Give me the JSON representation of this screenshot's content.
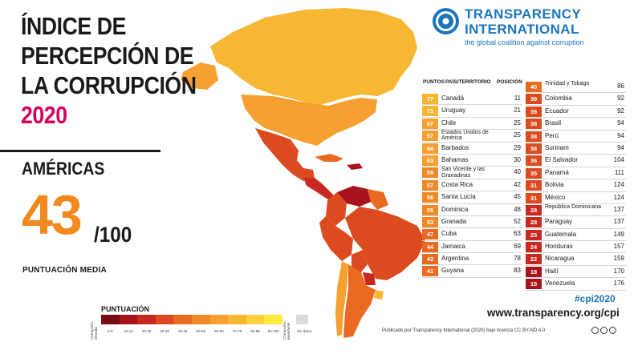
{
  "header": {
    "title_lines": [
      "ÍNDICE DE",
      "PERCEPCIÓN DE",
      "LA CORRUPCIÓN"
    ],
    "year": "2020",
    "region": "AMÉRICAS",
    "score": "43",
    "score_den": "/100",
    "avg_label": "PUNTUACIÓN MEDIA"
  },
  "logo": {
    "line1": "TRANSPARENCY",
    "line2": "INTERNATIONAL",
    "tagline": "the global coalition against corruption"
  },
  "table": {
    "headers": {
      "score": "PUNTOS",
      "country": "PAÍS/TERRITORIO",
      "rank": "POSICIÓN"
    },
    "left": [
      {
        "score": "77",
        "country": "Canadá",
        "rank": "11",
        "color": "#f7b733"
      },
      {
        "score": "71",
        "country": "Uruguay",
        "rank": "21",
        "color": "#f7b733"
      },
      {
        "score": "67",
        "country": "Chile",
        "rank": "25",
        "color": "#f5a030"
      },
      {
        "score": "67",
        "country": "Estados Unidos de América",
        "rank": "25",
        "color": "#f5a030"
      },
      {
        "score": "64",
        "country": "Barbados",
        "rank": "29",
        "color": "#f5a030"
      },
      {
        "score": "63",
        "country": "Bahamas",
        "rank": "30",
        "color": "#f5a030"
      },
      {
        "score": "59",
        "country": "San Vicente y las Granadinas",
        "rank": "40",
        "color": "#f08a27"
      },
      {
        "score": "57",
        "country": "Costa Rica",
        "rank": "42",
        "color": "#f08a27"
      },
      {
        "score": "56",
        "country": "Santa Lucía",
        "rank": "45",
        "color": "#f08a27"
      },
      {
        "score": "55",
        "country": "Dominica",
        "rank": "48",
        "color": "#f08a27"
      },
      {
        "score": "53",
        "country": "Granada",
        "rank": "52",
        "color": "#f08a27"
      },
      {
        "score": "47",
        "country": "Cuba",
        "rank": "63",
        "color": "#ea6a22"
      },
      {
        "score": "44",
        "country": "Jamaica",
        "rank": "69",
        "color": "#ea6a22"
      },
      {
        "score": "42",
        "country": "Argentina",
        "rank": "78",
        "color": "#ea6a22"
      },
      {
        "score": "41",
        "country": "Guyana",
        "rank": "83",
        "color": "#ea6a22"
      }
    ],
    "right": [
      {
        "score": "40",
        "country": "Trinidad y Tobago",
        "rank": "86",
        "color": "#ea6a22"
      },
      {
        "score": "39",
        "country": "Colombia",
        "rank": "92",
        "color": "#dc4b20"
      },
      {
        "score": "39",
        "country": "Ecuador",
        "rank": "92",
        "color": "#dc4b20"
      },
      {
        "score": "38",
        "country": "Brasil",
        "rank": "94",
        "color": "#dc4b20"
      },
      {
        "score": "38",
        "country": "Perú",
        "rank": "94",
        "color": "#dc4b20"
      },
      {
        "score": "38",
        "country": "Surinam",
        "rank": "94",
        "color": "#dc4b20"
      },
      {
        "score": "36",
        "country": "El Salvador",
        "rank": "104",
        "color": "#dc4b20"
      },
      {
        "score": "35",
        "country": "Panamá",
        "rank": "111",
        "color": "#dc4b20"
      },
      {
        "score": "31",
        "country": "Bolivia",
        "rank": "124",
        "color": "#dc4b20"
      },
      {
        "score": "31",
        "country": "México",
        "rank": "124",
        "color": "#dc4b20"
      },
      {
        "score": "28",
        "country": "República Dominicana",
        "rank": "137",
        "color": "#c8281f"
      },
      {
        "score": "28",
        "country": "Paraguay",
        "rank": "137",
        "color": "#c8281f"
      },
      {
        "score": "25",
        "country": "Guatemala",
        "rank": "149",
        "color": "#c8281f"
      },
      {
        "score": "24",
        "country": "Honduras",
        "rank": "157",
        "color": "#c8281f"
      },
      {
        "score": "22",
        "country": "Nicaragua",
        "rank": "159",
        "color": "#c8281f"
      },
      {
        "score": "18",
        "country": "Haití",
        "rank": "170",
        "color": "#a8141c"
      },
      {
        "score": "15",
        "country": "Venezuela",
        "rank": "176",
        "color": "#a8141c"
      }
    ]
  },
  "footer": {
    "hashtag": "#cpi2020",
    "url": "www.transparency.org/cpi",
    "credit": "Publicado por Transparency International (2020) bajo licencia CC BY-ND 4.0"
  },
  "legend": {
    "title": "PUNTUACIÓN",
    "left_label": "Corrupción elevada",
    "right_label": "Corrupción inexistente",
    "bins": [
      {
        "label": "0-9",
        "color": "#7a0a14"
      },
      {
        "label": "10-19",
        "color": "#a8141c"
      },
      {
        "label": "20-29",
        "color": "#c8281f"
      },
      {
        "label": "30-39",
        "color": "#dc4b20"
      },
      {
        "label": "40-49",
        "color": "#ea6a22"
      },
      {
        "label": "50-59",
        "color": "#f08a27"
      },
      {
        "label": "60-69",
        "color": "#f5a030"
      },
      {
        "label": "70-79",
        "color": "#f7b733"
      },
      {
        "label": "80-89",
        "color": "#fad13a"
      },
      {
        "label": "90-100",
        "color": "#fdec3f"
      }
    ],
    "no_data": "Sin datos",
    "no_data_color": "#dcdcdc"
  }
}
